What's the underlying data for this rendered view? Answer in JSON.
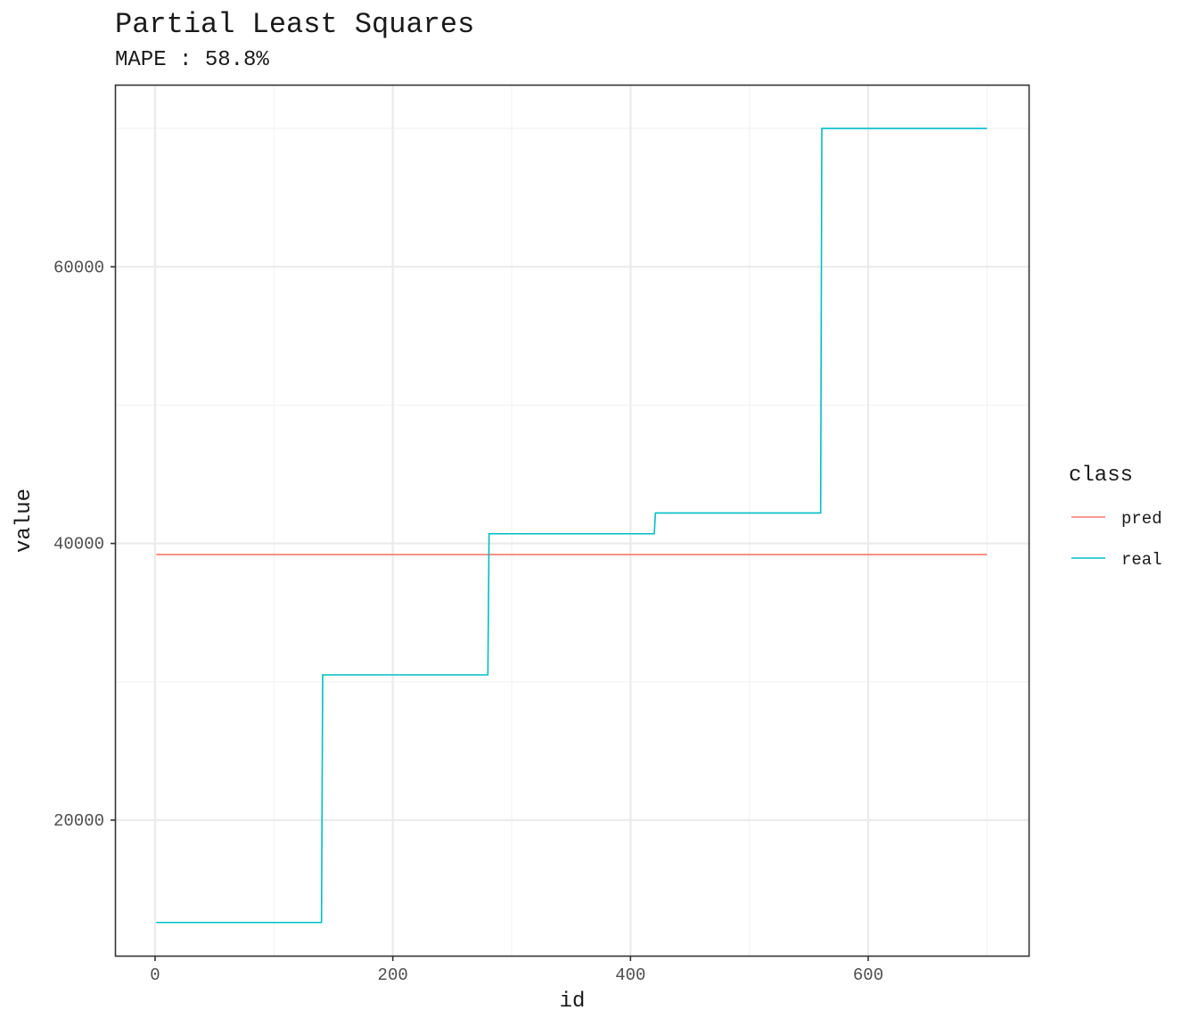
{
  "chart_data": {
    "type": "line",
    "title": "Partial Least Squares",
    "subtitle": "MAPE : 58.8%",
    "xlabel": "id",
    "ylabel": "value",
    "xlim": [
      -33,
      735
    ],
    "ylim": [
      10200,
      73100
    ],
    "x_major_ticks": [
      0,
      200,
      400,
      600
    ],
    "x_minor_ticks": [
      100,
      300,
      500,
      700
    ],
    "y_major_ticks": [
      20000,
      40000,
      60000
    ],
    "y_minor_ticks": [
      30000,
      50000,
      70000
    ],
    "x_tick_labels": [
      "0",
      "200",
      "400",
      "600"
    ],
    "y_tick_labels": [
      "20000",
      "40000",
      "60000"
    ],
    "grid": true,
    "legend": {
      "title": "class",
      "position": "right"
    },
    "series": [
      {
        "name": "pred",
        "color": "#F8766D",
        "x": [
          1,
          700
        ],
        "y": [
          39200,
          39200
        ]
      },
      {
        "name": "real",
        "color": "#00BFC4",
        "x": [
          1,
          140,
          141,
          280,
          281,
          420,
          421,
          560,
          561,
          700
        ],
        "y": [
          12600,
          12600,
          30500,
          30500,
          40700,
          40700,
          42200,
          42200,
          70000,
          70000
        ]
      }
    ]
  }
}
